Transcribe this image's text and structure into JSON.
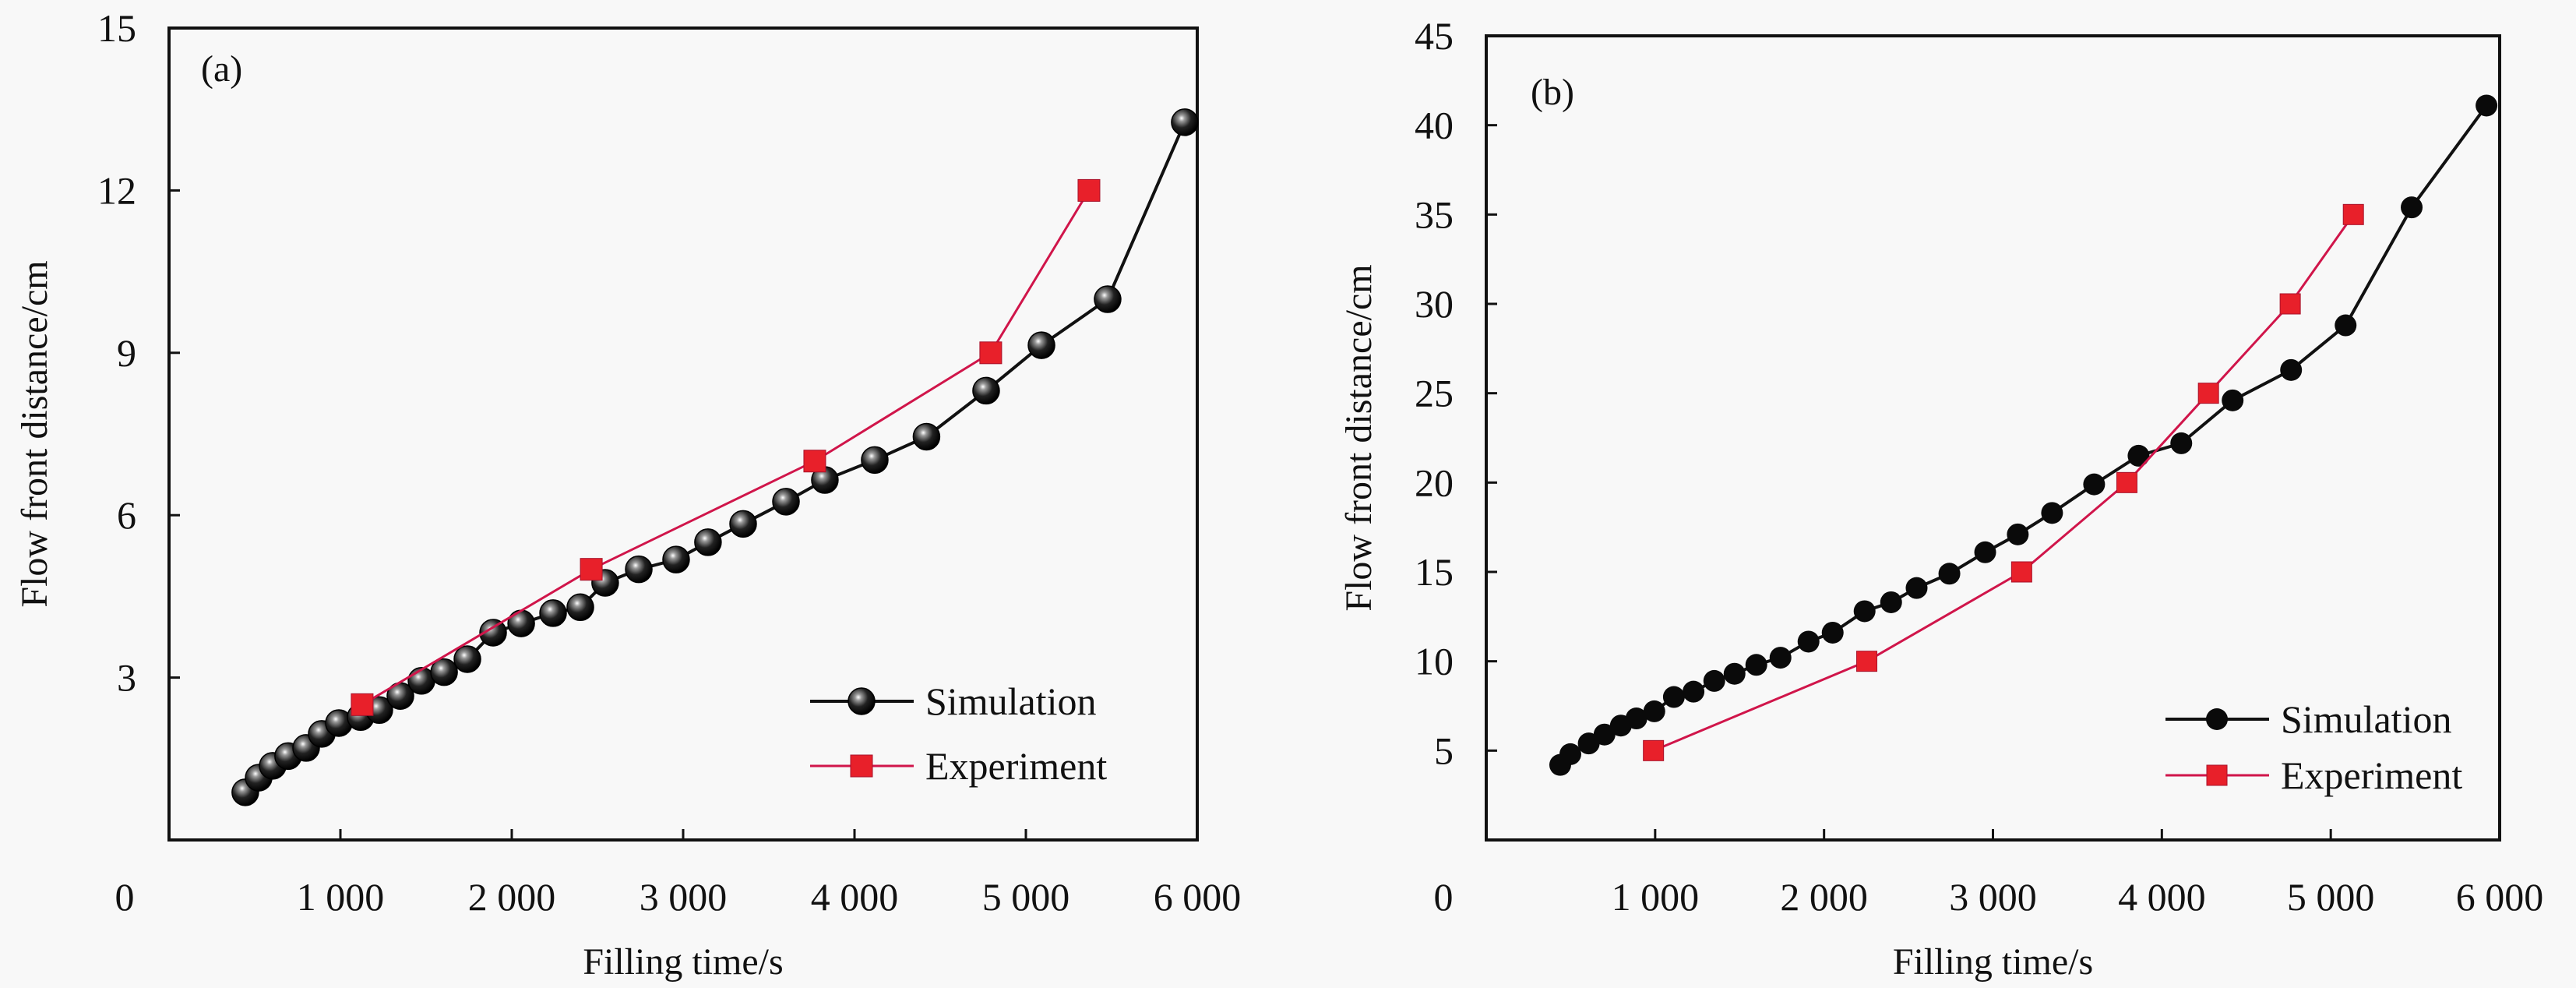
{
  "figure": {
    "background": "#f8f8f8",
    "colors": {
      "simulation": "#111111",
      "experiment": "#e8202a",
      "experiment_line": "#d0154a"
    }
  },
  "chart_data": [
    {
      "type": "line",
      "panel_label": "(a)",
      "xlabel": "Filling time/s",
      "ylabel": "Flow front distance/cm",
      "xlim": [
        0,
        6000
      ],
      "ylim": [
        0,
        15
      ],
      "xticks": [
        0,
        1000,
        2000,
        3000,
        4000,
        5000,
        6000
      ],
      "xtick_labels": [
        "0",
        "1 000",
        "2 000",
        "3 000",
        "4 000",
        "5 000",
        "6 000"
      ],
      "yticks": [
        3,
        6,
        9,
        12,
        15
      ],
      "ytick_labels": [
        "3",
        "6",
        "9",
        "12",
        "15"
      ],
      "grid": false,
      "legend_position": "bottom-right",
      "series": [
        {
          "name": "Simulation",
          "marker": "sphere",
          "x": [
            445,
            523,
            605,
            695,
            800,
            891,
            991,
            1118,
            1227,
            1350,
            1473,
            1605,
            1741,
            1891,
            2055,
            2241,
            2400,
            2545,
            2741,
            2959,
            3145,
            3350,
            3600,
            3827,
            4118,
            4420,
            4768,
            5091,
            5477,
            5927
          ],
          "y": [
            0.88,
            1.15,
            1.37,
            1.55,
            1.7,
            1.96,
            2.16,
            2.27,
            2.4,
            2.66,
            2.94,
            3.1,
            3.34,
            3.83,
            4.0,
            4.19,
            4.3,
            4.75,
            5.0,
            5.18,
            5.5,
            5.84,
            6.25,
            6.65,
            7.02,
            7.45,
            8.3,
            9.14,
            9.99,
            13.26
          ]
        },
        {
          "name": "Experiment",
          "marker": "square",
          "x": [
            1127,
            2464,
            3768,
            4795,
            5368
          ],
          "y": [
            2.5,
            5.0,
            7.0,
            9.0,
            12.0
          ]
        }
      ]
    },
    {
      "type": "line",
      "panel_label": "(b)",
      "xlabel": "Filling time/s",
      "ylabel": "Flow front distance/cm",
      "xlim": [
        0,
        6000
      ],
      "ylim": [
        0,
        45
      ],
      "xticks": [
        0,
        1000,
        2000,
        3000,
        4000,
        5000,
        6000
      ],
      "xtick_labels": [
        "0",
        "1 000",
        "2 000",
        "3 000",
        "4 000",
        "5 000",
        "6 000"
      ],
      "yticks": [
        5,
        10,
        15,
        20,
        25,
        30,
        35,
        40,
        45
      ],
      "ytick_labels": [
        "5",
        "10",
        "15",
        "20",
        "25",
        "30",
        "35",
        "40",
        "45"
      ],
      "grid": false,
      "legend_position": "bottom-right",
      "series": [
        {
          "name": "Simulation",
          "marker": "circle",
          "x": [
            438,
            498,
            607,
            700,
            797,
            889,
            995,
            1111,
            1227,
            1350,
            1470,
            1599,
            1742,
            1908,
            2051,
            2240,
            2397,
            2548,
            2742,
            2954,
            3147,
            3350,
            3599,
            3862,
            4115,
            4419,
            4765,
            5088,
            5479,
            5922
          ],
          "y": [
            4.2,
            4.8,
            5.4,
            5.9,
            6.4,
            6.8,
            7.2,
            8.0,
            8.3,
            8.9,
            9.3,
            9.8,
            10.2,
            11.1,
            11.6,
            12.8,
            13.3,
            14.1,
            14.9,
            16.1,
            17.1,
            18.3,
            19.9,
            21.5,
            22.2,
            24.6,
            26.3,
            28.8,
            35.4,
            41.1
          ]
        },
        {
          "name": "Experiment",
          "marker": "square",
          "x": [
            990,
            2253,
            3170,
            3793,
            4276,
            4760,
            5134
          ],
          "y": [
            5.0,
            10.0,
            15.0,
            20.0,
            25.0,
            30.0,
            35.0
          ]
        }
      ]
    }
  ]
}
